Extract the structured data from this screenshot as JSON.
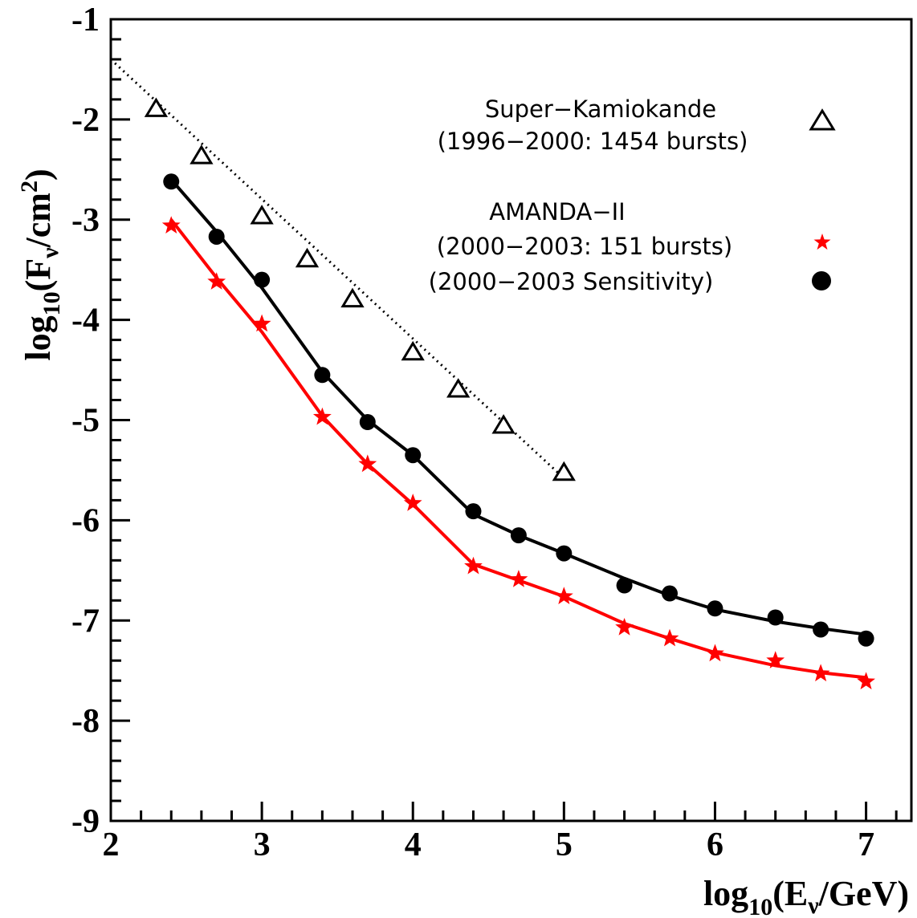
{
  "chart_data": {
    "type": "line",
    "xlim": [
      2,
      7.3
    ],
    "ylim": [
      -9,
      -1
    ],
    "x_ticks": [
      "2",
      "3",
      "4",
      "5",
      "6",
      "7"
    ],
    "y_ticks": [
      "-1",
      "-2",
      "-3",
      "-4",
      "-5",
      "-6",
      "-7",
      "-8",
      "-9"
    ],
    "xlabel": {
      "prefix": "log",
      "sub": "10",
      "main": "(E",
      "sub2": "ν",
      "tail": "/GeV)"
    },
    "ylabel": {
      "prefix": "log",
      "sub": "10",
      "main": "(F",
      "sub2": "ν",
      "mid": "/cm",
      "sup": "2",
      "tail": ")"
    },
    "grid": false,
    "legend_position": "top-right",
    "legend": [
      {
        "label": "Super−Kamiokande",
        "marker": "triangle-open"
      },
      {
        "label": "(1996−2000: 1454 bursts)",
        "marker": "triangle-open"
      },
      {
        "label": "AMANDA−II",
        "marker": "none"
      },
      {
        "label": "(2000−2003: 151 bursts)",
        "marker": "star"
      },
      {
        "label": "(2000−2003 Sensitivity)",
        "marker": "circle"
      }
    ],
    "series": [
      {
        "marker": "triangle-open",
        "color": "#000000",
        "points": [
          [
            2.3,
            -1.9
          ],
          [
            2.6,
            -2.37
          ],
          [
            3.0,
            -2.97
          ],
          [
            3.3,
            -3.4
          ],
          [
            3.6,
            -3.8
          ],
          [
            4.0,
            -4.33
          ],
          [
            4.3,
            -4.7
          ],
          [
            4.6,
            -5.06
          ],
          [
            5.0,
            -5.53
          ]
        ],
        "line": [
          [
            2.0,
            -1.4
          ],
          [
            5.0,
            -5.58
          ]
        ],
        "line_style": "dotted"
      },
      {
        "marker": "circle",
        "color": "#000000",
        "points": [
          [
            2.4,
            -2.62
          ],
          [
            2.7,
            -3.17
          ],
          [
            3.0,
            -3.6
          ],
          [
            3.4,
            -4.55
          ],
          [
            3.7,
            -5.02
          ],
          [
            4.0,
            -5.35
          ],
          [
            4.4,
            -5.91
          ],
          [
            4.7,
            -6.15
          ],
          [
            5.0,
            -6.33
          ],
          [
            5.4,
            -6.65
          ],
          [
            5.7,
            -6.73
          ],
          [
            6.0,
            -6.88
          ],
          [
            6.4,
            -6.97
          ],
          [
            6.7,
            -7.09
          ],
          [
            7.0,
            -7.18
          ]
        ],
        "line": [
          [
            2.4,
            -2.6
          ],
          [
            2.7,
            -3.12
          ],
          [
            3.0,
            -3.68
          ],
          [
            3.4,
            -4.52
          ],
          [
            3.7,
            -5.0
          ],
          [
            4.0,
            -5.35
          ],
          [
            4.4,
            -5.94
          ],
          [
            4.7,
            -6.15
          ],
          [
            5.0,
            -6.33
          ],
          [
            5.4,
            -6.58
          ],
          [
            5.7,
            -6.75
          ],
          [
            6.0,
            -6.89
          ],
          [
            6.4,
            -7.01
          ],
          [
            6.7,
            -7.08
          ],
          [
            7.0,
            -7.14
          ]
        ],
        "line_style": "solid"
      },
      {
        "marker": "star",
        "color": "#ff0000",
        "points": [
          [
            2.4,
            -3.06
          ],
          [
            2.7,
            -3.62
          ],
          [
            3.0,
            -4.04
          ],
          [
            3.4,
            -4.97
          ],
          [
            3.7,
            -5.44
          ],
          [
            4.0,
            -5.83
          ],
          [
            4.4,
            -6.46
          ],
          [
            4.7,
            -6.59
          ],
          [
            5.0,
            -6.76
          ],
          [
            5.4,
            -7.07
          ],
          [
            5.7,
            -7.18
          ],
          [
            6.0,
            -7.33
          ],
          [
            6.4,
            -7.4
          ],
          [
            6.7,
            -7.53
          ],
          [
            7.0,
            -7.61
          ]
        ],
        "line": [
          [
            2.4,
            -3.0
          ],
          [
            2.7,
            -3.58
          ],
          [
            3.0,
            -4.12
          ],
          [
            3.4,
            -4.96
          ],
          [
            3.7,
            -5.44
          ],
          [
            4.0,
            -5.84
          ],
          [
            4.4,
            -6.44
          ],
          [
            4.7,
            -6.6
          ],
          [
            5.0,
            -6.76
          ],
          [
            5.4,
            -7.03
          ],
          [
            5.7,
            -7.18
          ],
          [
            6.0,
            -7.32
          ],
          [
            6.4,
            -7.45
          ],
          [
            6.7,
            -7.52
          ],
          [
            7.0,
            -7.57
          ]
        ],
        "line_style": "solid"
      }
    ]
  }
}
